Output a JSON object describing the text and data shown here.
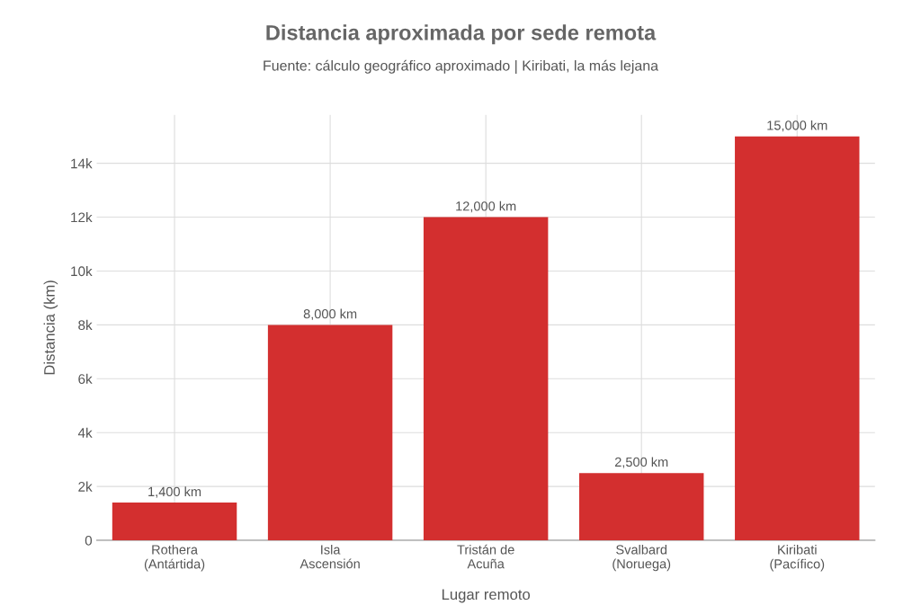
{
  "chart_data": {
    "type": "bar",
    "title": "Distancia aproximada por sede remota",
    "subtitle": "Fuente: cálculo geográfico aproximado | Kiribati, la más lejana",
    "xlabel": "Lugar remoto",
    "ylabel": "Distancia (km)",
    "categories": [
      "Rothera\n(Antártida)",
      "Isla\nAscensión",
      "Tristán de\nAcuña",
      "Svalbard\n(Noruega)",
      "Kiribati\n(Pacífico)"
    ],
    "values": [
      1400,
      8000,
      12000,
      2500,
      15000
    ],
    "value_labels": [
      "1,400 km",
      "8,000 km",
      "12,000 km",
      "2,500 km",
      "15,000 km"
    ],
    "color": "#d32f2f",
    "ylim": [
      0,
      15800
    ],
    "yticks": [
      0,
      {
        "value": 2000,
        "label": "2k"
      },
      {
        "value": 4000,
        "label": "4k"
      },
      {
        "value": 6000,
        "label": "6k"
      },
      {
        "value": 8000,
        "label": "8k"
      },
      {
        "value": 10000,
        "label": "10k"
      },
      {
        "value": 12000,
        "label": "12k"
      },
      {
        "value": 14000,
        "label": "14k"
      }
    ],
    "grid": true,
    "legend": false
  }
}
